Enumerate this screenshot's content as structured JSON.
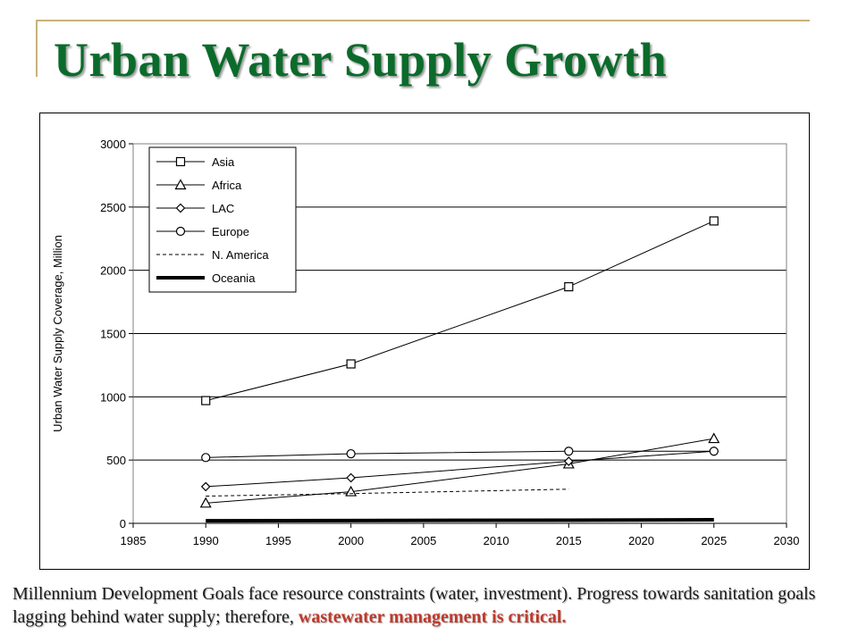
{
  "slide": {
    "title": "Urban Water Supply Growth",
    "caption_main": "Millennium Development Goals face resource constraints (water, investment). Progress towards sanitation goals lagging behind water supply; therefore, ",
    "caption_highlight": "wastewater management is critical."
  },
  "chart_data": {
    "type": "line",
    "title": "",
    "xlabel": "",
    "ylabel": "Urban Water Supply Coverage, Million",
    "xlim": [
      1985,
      2030
    ],
    "ylim": [
      0,
      3000
    ],
    "x_ticks": [
      1985,
      1990,
      1995,
      2000,
      2005,
      2010,
      2015,
      2020,
      2025,
      2030
    ],
    "y_ticks": [
      0,
      500,
      1000,
      1500,
      2000,
      2500,
      3000
    ],
    "grid": "horizontal",
    "legend_position": "top-left",
    "series": [
      {
        "name": "Asia",
        "marker": "square",
        "style": "solid",
        "points": [
          [
            1990,
            970
          ],
          [
            2000,
            1260
          ],
          [
            2015,
            1870
          ],
          [
            2025,
            2390
          ]
        ]
      },
      {
        "name": "Africa",
        "marker": "triangle",
        "style": "solid",
        "points": [
          [
            1990,
            160
          ],
          [
            2000,
            250
          ],
          [
            2015,
            470
          ],
          [
            2025,
            670
          ]
        ]
      },
      {
        "name": "LAC",
        "marker": "diamond",
        "style": "solid",
        "points": [
          [
            1990,
            290
          ],
          [
            2000,
            360
          ],
          [
            2015,
            490
          ],
          [
            2025,
            570
          ]
        ]
      },
      {
        "name": "Europe",
        "marker": "circle",
        "style": "solid",
        "points": [
          [
            1990,
            520
          ],
          [
            2000,
            550
          ],
          [
            2015,
            570
          ],
          [
            2025,
            570
          ]
        ]
      },
      {
        "name": "N. America",
        "marker": "none",
        "style": "dashed",
        "points": [
          [
            1990,
            215
          ],
          [
            2000,
            235
          ],
          [
            2015,
            270
          ]
        ]
      },
      {
        "name": "Oceania",
        "marker": "none",
        "style": "thick",
        "points": [
          [
            1990,
            20
          ],
          [
            2000,
            22
          ],
          [
            2015,
            25
          ],
          [
            2025,
            28
          ]
        ]
      }
    ]
  }
}
